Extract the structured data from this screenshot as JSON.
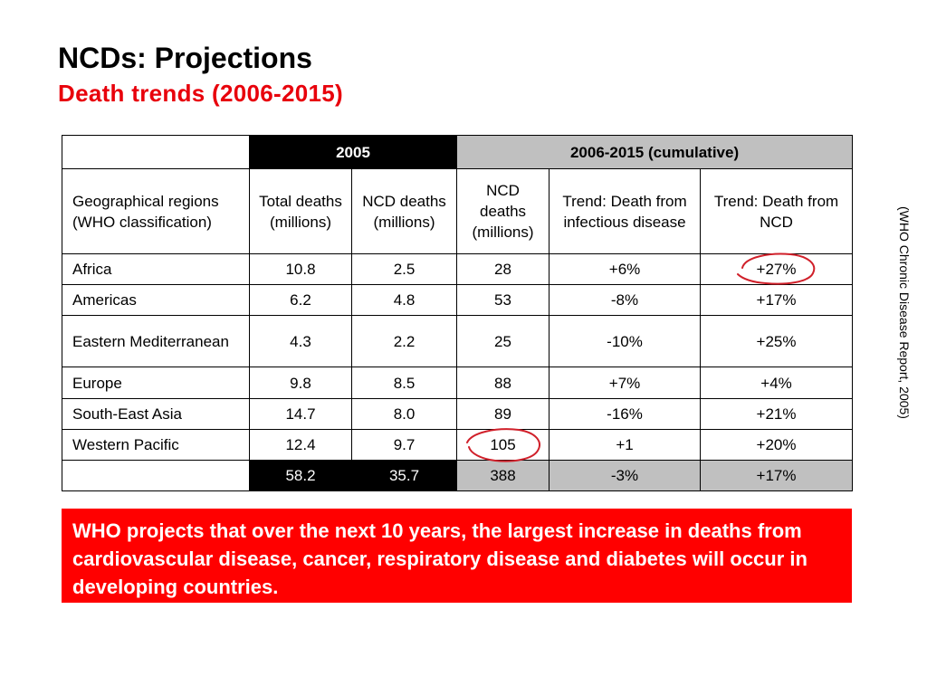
{
  "header": {
    "title": "NCDs: Projections",
    "subtitle": "Death trends (2006-2015)"
  },
  "table": {
    "group_headers": {
      "g2005": "2005",
      "gcum": "2006-2015 (cumulative)"
    },
    "columns": [
      "Geographical regions (WHO classification)",
      "Total deaths (millions)",
      "NCD deaths (millions)",
      "NCD deaths (millions)",
      "Trend: Death from infectious disease",
      "Trend: Death from NCD"
    ],
    "rows": [
      [
        "Africa",
        "10.8",
        "2.5",
        "28",
        "+6%",
        "+27%"
      ],
      [
        "Americas",
        "6.2",
        "4.8",
        "53",
        "-8%",
        "+17%"
      ],
      [
        "Eastern Mediterranean",
        "4.3",
        "2.2",
        "25",
        "-10%",
        "+25%"
      ],
      [
        "Europe",
        "9.8",
        "8.5",
        "88",
        "+7%",
        "+4%"
      ],
      [
        "South-East Asia",
        "14.7",
        "8.0",
        "89",
        "-16%",
        "+21%"
      ],
      [
        "Western Pacific",
        "12.4",
        "9.7",
        "105",
        "+1",
        "+20%"
      ]
    ],
    "totals": [
      "",
      "58.2",
      "35.7",
      "388",
      "-3%",
      "+17%"
    ]
  },
  "source_note": "(WHO Chronic Disease Report, 2005)",
  "callout": "WHO projects that over the next 10 years, the largest increase in deaths from cardiovascular disease, cancer, respiratory disease and diabetes will occur in developing countries.",
  "colors": {
    "accent_red": "#e8000b",
    "callout_bg": "#ff0000",
    "header_black": "#000000",
    "header_grey": "#c0c0c0",
    "annotation_ink": "#d0202a"
  }
}
